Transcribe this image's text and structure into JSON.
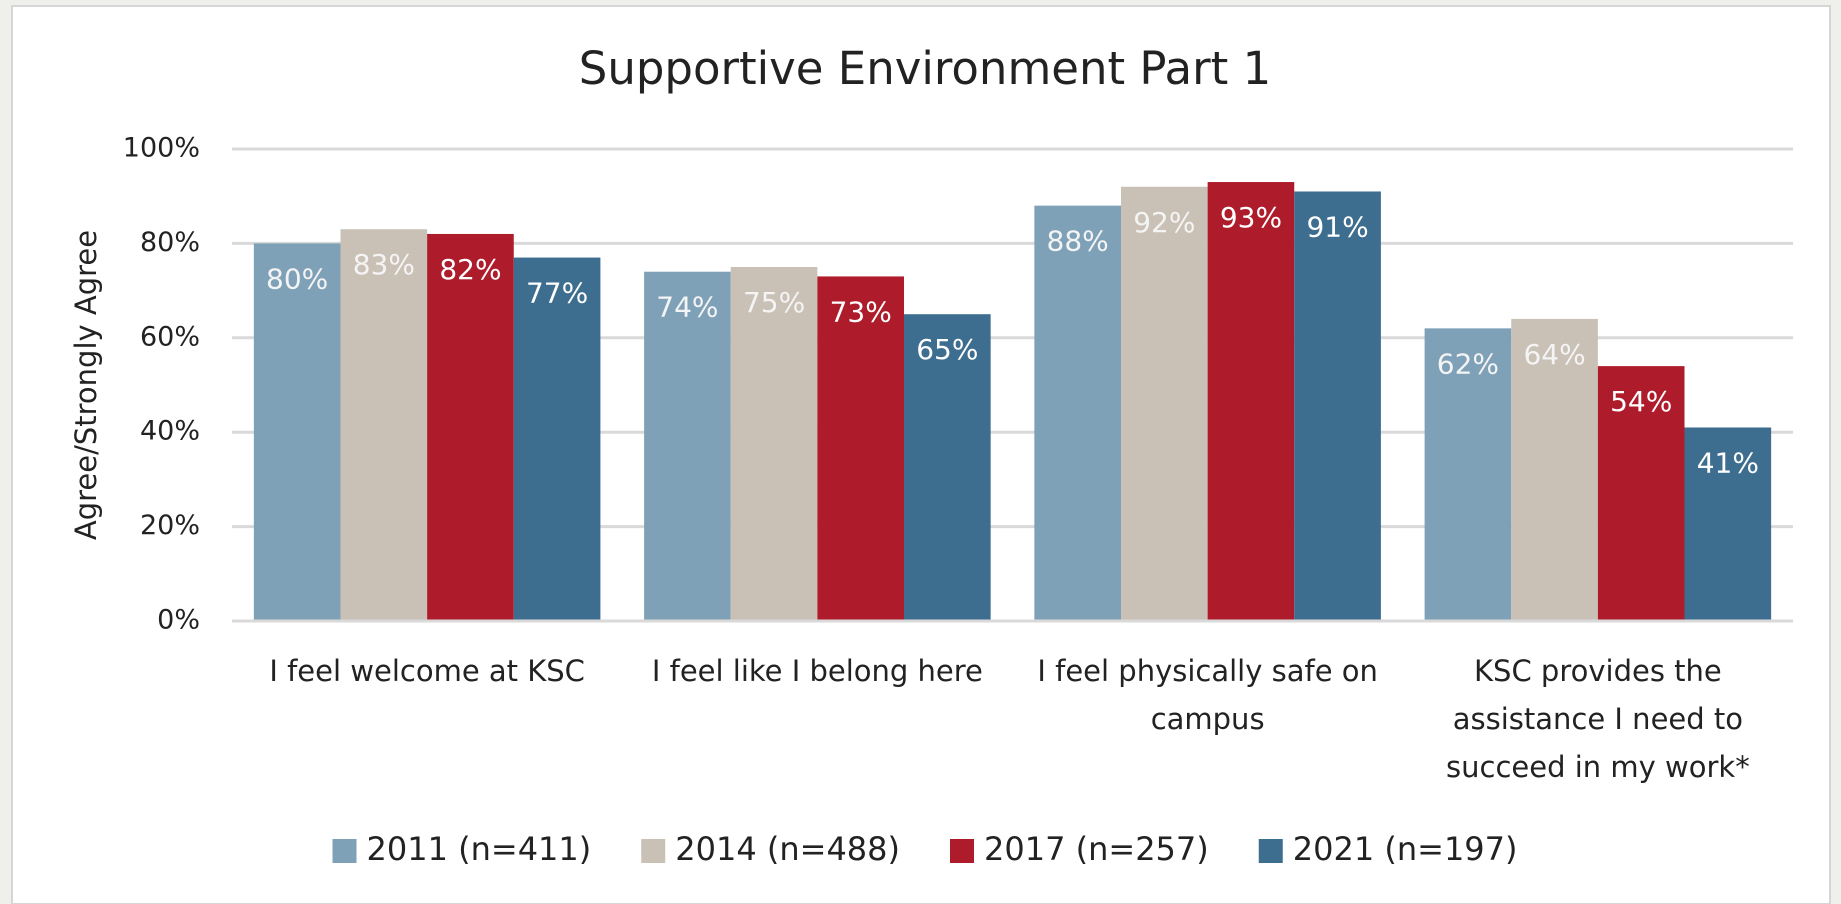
{
  "chart_data": {
    "type": "bar",
    "title": "Supportive Environment Part 1",
    "y_label": "Agree/Strongly Agree",
    "categories": [
      "I feel welcome at KSC",
      "I feel like I belong here",
      "I feel physically safe on campus",
      "KSC provides the assistance I need to succeed in my work*"
    ],
    "series": [
      {
        "name": "2011 (n=411)",
        "color": "#7fa1b8",
        "values": [
          80,
          74,
          88,
          62
        ],
        "value_labels": [
          "80%",
          "74%",
          "88%",
          "62%"
        ]
      },
      {
        "name": "2014 (n=488)",
        "color": "#c9c0b6",
        "values": [
          83,
          75,
          92,
          64
        ],
        "value_labels": [
          "83%",
          "75%",
          "92%",
          "64%"
        ]
      },
      {
        "name": "2017 (n=257)",
        "color": "#ae1c2c",
        "values": [
          82,
          73,
          93,
          54
        ],
        "value_labels": [
          "82%",
          "73%",
          "93%",
          "54%"
        ]
      },
      {
        "name": "2021 (n=197)",
        "color": "#3d6d8f",
        "values": [
          77,
          65,
          91,
          41
        ],
        "value_labels": [
          "77%",
          "65%",
          "91%",
          "41%"
        ]
      }
    ],
    "ylim": [
      0,
      100
    ],
    "yticks": [
      {
        "value": 0,
        "label": "0%"
      },
      {
        "value": 20,
        "label": "20%"
      },
      {
        "value": 40,
        "label": "40%"
      },
      {
        "value": 60,
        "label": "60%"
      },
      {
        "value": 80,
        "label": "80%"
      },
      {
        "value": 100,
        "label": "100%"
      }
    ],
    "grid": true,
    "legend": "bottom"
  }
}
